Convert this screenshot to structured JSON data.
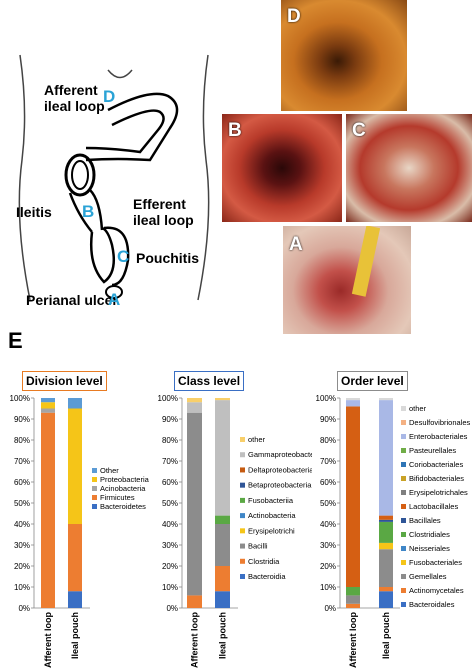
{
  "diagram": {
    "afferent_loop_label": [
      "Afferent",
      "ileal loop"
    ],
    "efferent_loop_label": [
      "Efferent",
      "ileal loop"
    ],
    "ileitis_label": "Ileitis",
    "pouchitis_label": "Pouchitis",
    "perianal_label": "Perianal ulcer",
    "letters": {
      "A": "A",
      "B": "B",
      "C": "C",
      "D": "D"
    },
    "letter_color": "#2aa3d6"
  },
  "photos": {
    "D": "D",
    "B": "B",
    "C": "C",
    "A": "A"
  },
  "panel_e_label": "E",
  "chart_data": [
    {
      "type": "bar",
      "title": "Division level",
      "title_border_color": "#e87b22",
      "categories": [
        "Afferent loop",
        "Ileal pouch"
      ],
      "ylim": [
        0,
        100
      ],
      "yticks": [
        "0%",
        "10%",
        "20%",
        "30%",
        "40%",
        "50%",
        "60%",
        "70%",
        "80%",
        "90%",
        "100%"
      ],
      "series": [
        {
          "name": "Bacteroidetes",
          "color": "#3a6fc4",
          "values": [
            0,
            8
          ]
        },
        {
          "name": "Firmicutes",
          "color": "#ed7d31",
          "values": [
            93,
            32
          ]
        },
        {
          "name": "Acinobacteria",
          "color": "#a5a5a5",
          "values": [
            2,
            0
          ]
        },
        {
          "name": "Proteobacteria",
          "color": "#f5c518",
          "values": [
            3,
            55
          ]
        },
        {
          "name": "Other",
          "color": "#5b9bd5",
          "values": [
            2,
            5
          ]
        }
      ]
    },
    {
      "type": "bar",
      "title": "Class level",
      "title_border_color": "#3a6fc4",
      "categories": [
        "Afferent loop",
        "Ileal pouch"
      ],
      "ylim": [
        0,
        100
      ],
      "yticks": [
        "0%",
        "10%",
        "20%",
        "30%",
        "40%",
        "50%",
        "60%",
        "70%",
        "80%",
        "90%",
        "100%"
      ],
      "series": [
        {
          "name": "Bacteroidia",
          "color": "#3a6fc4",
          "values": [
            0,
            8
          ]
        },
        {
          "name": "Clostridia",
          "color": "#ed7d31",
          "values": [
            6,
            12
          ]
        },
        {
          "name": "Bacilli",
          "color": "#8c8c8c",
          "values": [
            87,
            20
          ]
        },
        {
          "name": "Erysipelotrichi",
          "color": "#f5c518",
          "values": [
            0,
            0
          ]
        },
        {
          "name": "Actinobacteria",
          "color": "#3f86c7",
          "values": [
            0,
            0
          ]
        },
        {
          "name": "Fusobacteriia",
          "color": "#5aa844",
          "values": [
            0,
            4
          ]
        },
        {
          "name": "Betaproteobacteria",
          "color": "#2f5597",
          "values": [
            0,
            0
          ]
        },
        {
          "name": "Deltaproteobacteria",
          "color": "#c55a11",
          "values": [
            0,
            0
          ]
        },
        {
          "name": "Gammaproteobacteria",
          "color": "#bfbfbf",
          "values": [
            5,
            55
          ]
        },
        {
          "name": "other",
          "color": "#f8cf6a",
          "values": [
            2,
            1
          ]
        }
      ]
    },
    {
      "type": "bar",
      "title": "Order level",
      "title_border_color": "#8c8c8c",
      "categories": [
        "Afferent loop",
        "Ileal pouch"
      ],
      "ylim": [
        0,
        100
      ],
      "yticks": [
        "0%",
        "10%",
        "20%",
        "30%",
        "40%",
        "50%",
        "60%",
        "70%",
        "80%",
        "90%",
        "100%"
      ],
      "series": [
        {
          "name": "Bacteroidales",
          "color": "#3a6fc4",
          "values": [
            0,
            8
          ]
        },
        {
          "name": "Actinomycetales",
          "color": "#ed7d31",
          "values": [
            2,
            2
          ]
        },
        {
          "name": "Gemellales",
          "color": "#8c8c8c",
          "values": [
            4,
            18
          ]
        },
        {
          "name": "Fusobacteriales",
          "color": "#f5c518",
          "values": [
            0,
            3
          ]
        },
        {
          "name": "Neisseriales",
          "color": "#3f86c7",
          "values": [
            0,
            0
          ]
        },
        {
          "name": "Clostridiales",
          "color": "#5aa844",
          "values": [
            4,
            10
          ]
        },
        {
          "name": "Bacillales",
          "color": "#2f5597",
          "values": [
            0,
            1
          ]
        },
        {
          "name": "Lactobacillales",
          "color": "#d55f13",
          "values": [
            86,
            2
          ]
        },
        {
          "name": "Erysipelotrichales",
          "color": "#7f7f7f",
          "values": [
            0,
            0
          ]
        },
        {
          "name": "Bifidobacteriales",
          "color": "#c9a227",
          "values": [
            0,
            0
          ]
        },
        {
          "name": "Coriobacteriales",
          "color": "#2e75b6",
          "values": [
            0,
            0
          ]
        },
        {
          "name": "Pasteurellales",
          "color": "#70ad47",
          "values": [
            0,
            0
          ]
        },
        {
          "name": "Enterobacteriales",
          "color": "#a9b8e6",
          "values": [
            3,
            55
          ]
        },
        {
          "name": "Desulfovibrionales",
          "color": "#f4b183",
          "values": [
            0,
            0
          ]
        },
        {
          "name": "other",
          "color": "#d9d9d9",
          "values": [
            1,
            1
          ]
        }
      ]
    }
  ]
}
